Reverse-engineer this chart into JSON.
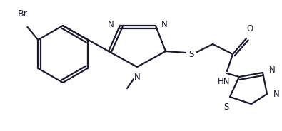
{
  "bg_color": "#ffffff",
  "line_color": "#1a1a2e",
  "label_color": "#1a1a2e",
  "line_width": 1.6,
  "font_size": 8.5,
  "figsize": [
    3.95,
    1.84
  ],
  "dpi": 100,
  "xlim": [
    0,
    395
  ],
  "ylim": [
    0,
    184
  ]
}
